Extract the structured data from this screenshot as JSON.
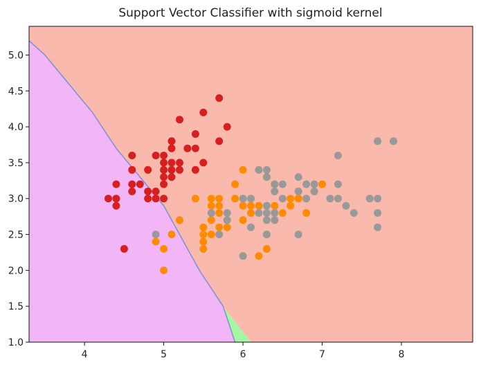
{
  "chart_data": {
    "type": "scatter",
    "title": "Support Vector Classifier with sigmoid kernel",
    "xlabel": "",
    "ylabel": "",
    "xlim": [
      3.3,
      8.9
    ],
    "ylim": [
      1.0,
      5.4
    ],
    "x_ticks": [
      4,
      5,
      6,
      7,
      8
    ],
    "y_ticks": [
      1.0,
      1.5,
      2.0,
      2.5,
      3.0,
      3.5,
      4.0,
      4.5,
      5.0
    ],
    "grid": false,
    "legend": "none",
    "regions": [
      {
        "color": "#f9b9ad",
        "polygon": [
          [
            3.3,
            5.2
          ],
          [
            3.5,
            5.0
          ],
          [
            3.8,
            4.6
          ],
          [
            4.1,
            4.2
          ],
          [
            4.4,
            3.7
          ],
          [
            4.7,
            3.3
          ],
          [
            5.0,
            2.9
          ],
          [
            5.2,
            2.5
          ],
          [
            5.45,
            2.0
          ],
          [
            5.75,
            1.5
          ],
          [
            6.1,
            1.0
          ],
          [
            8.9,
            1.0
          ],
          [
            8.9,
            5.4
          ],
          [
            3.3,
            5.4
          ]
        ]
      },
      {
        "color": "#a6f7a2",
        "polygon": [
          [
            5.75,
            1.5
          ],
          [
            5.9,
            1.0
          ],
          [
            6.1,
            1.0
          ]
        ]
      },
      {
        "color": "#f2b6f7",
        "polygon": [
          [
            3.3,
            1.0
          ],
          [
            5.9,
            1.0
          ],
          [
            5.75,
            1.5
          ],
          [
            5.45,
            2.0
          ],
          [
            5.2,
            2.5
          ],
          [
            5.0,
            2.9
          ],
          [
            4.7,
            3.3
          ],
          [
            4.4,
            3.7
          ],
          [
            4.1,
            4.2
          ],
          [
            3.8,
            4.6
          ],
          [
            3.5,
            5.0
          ],
          [
            3.3,
            5.2
          ]
        ]
      }
    ],
    "boundary": {
      "color": "#7a8fd6",
      "points": [
        [
          3.3,
          5.2
        ],
        [
          3.5,
          5.0
        ],
        [
          3.8,
          4.6
        ],
        [
          4.1,
          4.2
        ],
        [
          4.4,
          3.7
        ],
        [
          4.7,
          3.3
        ],
        [
          5.0,
          2.9
        ],
        [
          5.2,
          2.5
        ],
        [
          5.45,
          2.0
        ],
        [
          5.75,
          1.5
        ],
        [
          5.9,
          1.0
        ]
      ]
    },
    "series": [
      {
        "color": "#d71f1f",
        "points": [
          [
            4.3,
            3.0
          ],
          [
            4.4,
            2.9
          ],
          [
            4.4,
            3.0
          ],
          [
            4.4,
            3.2
          ],
          [
            4.5,
            2.3
          ],
          [
            4.6,
            3.1
          ],
          [
            4.6,
            3.2
          ],
          [
            4.6,
            3.4
          ],
          [
            4.6,
            3.6
          ],
          [
            4.7,
            3.2
          ],
          [
            4.8,
            3.0
          ],
          [
            4.8,
            3.1
          ],
          [
            4.8,
            3.4
          ],
          [
            4.9,
            3.0
          ],
          [
            4.9,
            3.1
          ],
          [
            4.9,
            3.6
          ],
          [
            5.0,
            3.0
          ],
          [
            5.0,
            3.2
          ],
          [
            5.0,
            3.3
          ],
          [
            5.0,
            3.4
          ],
          [
            5.0,
            3.5
          ],
          [
            5.0,
            3.6
          ],
          [
            5.1,
            3.3
          ],
          [
            5.1,
            3.4
          ],
          [
            5.1,
            3.5
          ],
          [
            5.1,
            3.7
          ],
          [
            5.1,
            3.8
          ],
          [
            5.2,
            3.4
          ],
          [
            5.2,
            3.5
          ],
          [
            5.2,
            4.1
          ],
          [
            5.3,
            3.7
          ],
          [
            5.4,
            3.4
          ],
          [
            5.4,
            3.7
          ],
          [
            5.4,
            3.9
          ],
          [
            5.5,
            3.5
          ],
          [
            5.5,
            4.2
          ],
          [
            5.7,
            3.8
          ],
          [
            5.7,
            4.4
          ],
          [
            5.8,
            4.0
          ]
        ]
      },
      {
        "color": "#ff8c00",
        "points": [
          [
            4.9,
            2.4
          ],
          [
            5.0,
            2.0
          ],
          [
            5.0,
            2.3
          ],
          [
            5.1,
            2.5
          ],
          [
            5.2,
            2.7
          ],
          [
            5.4,
            3.0
          ],
          [
            5.5,
            2.3
          ],
          [
            5.5,
            2.4
          ],
          [
            5.5,
            2.5
          ],
          [
            5.5,
            2.6
          ],
          [
            5.6,
            2.5
          ],
          [
            5.6,
            2.7
          ],
          [
            5.6,
            2.9
          ],
          [
            5.6,
            3.0
          ],
          [
            5.7,
            2.6
          ],
          [
            5.7,
            2.8
          ],
          [
            5.7,
            2.9
          ],
          [
            5.7,
            3.0
          ],
          [
            5.8,
            2.6
          ],
          [
            5.8,
            2.7
          ],
          [
            5.9,
            3.0
          ],
          [
            5.9,
            3.2
          ],
          [
            6.0,
            2.2
          ],
          [
            6.0,
            2.7
          ],
          [
            6.0,
            2.9
          ],
          [
            6.0,
            3.4
          ],
          [
            6.1,
            2.8
          ],
          [
            6.1,
            2.9
          ],
          [
            6.1,
            3.0
          ],
          [
            6.2,
            2.2
          ],
          [
            6.2,
            2.9
          ],
          [
            6.3,
            2.3
          ],
          [
            6.3,
            2.5
          ],
          [
            6.3,
            3.3
          ],
          [
            6.4,
            2.9
          ],
          [
            6.4,
            3.2
          ],
          [
            6.5,
            2.8
          ],
          [
            6.6,
            2.9
          ],
          [
            6.6,
            3.0
          ],
          [
            6.7,
            3.0
          ],
          [
            6.7,
            3.1
          ],
          [
            6.8,
            2.8
          ],
          [
            6.9,
            3.1
          ],
          [
            7.0,
            3.2
          ]
        ]
      },
      {
        "color": "#999999",
        "points": [
          [
            4.9,
            2.5
          ],
          [
            5.6,
            2.8
          ],
          [
            5.7,
            2.5
          ],
          [
            5.8,
            2.7
          ],
          [
            5.8,
            2.8
          ],
          [
            6.0,
            2.2
          ],
          [
            6.0,
            3.0
          ],
          [
            6.1,
            2.6
          ],
          [
            6.1,
            3.0
          ],
          [
            6.2,
            2.8
          ],
          [
            6.2,
            3.4
          ],
          [
            6.3,
            2.5
          ],
          [
            6.3,
            2.7
          ],
          [
            6.3,
            2.8
          ],
          [
            6.3,
            2.9
          ],
          [
            6.3,
            3.3
          ],
          [
            6.3,
            3.4
          ],
          [
            6.4,
            2.7
          ],
          [
            6.4,
            2.8
          ],
          [
            6.4,
            3.1
          ],
          [
            6.4,
            3.2
          ],
          [
            6.5,
            3.0
          ],
          [
            6.5,
            3.2
          ],
          [
            6.7,
            2.5
          ],
          [
            6.7,
            3.1
          ],
          [
            6.7,
            3.3
          ],
          [
            6.8,
            3.0
          ],
          [
            6.8,
            3.2
          ],
          [
            6.9,
            3.1
          ],
          [
            6.9,
            3.2
          ],
          [
            7.1,
            3.0
          ],
          [
            7.2,
            3.0
          ],
          [
            7.2,
            3.2
          ],
          [
            7.2,
            3.6
          ],
          [
            7.3,
            2.9
          ],
          [
            7.4,
            2.8
          ],
          [
            7.6,
            3.0
          ],
          [
            7.7,
            2.6
          ],
          [
            7.7,
            2.8
          ],
          [
            7.7,
            3.0
          ],
          [
            7.7,
            3.8
          ],
          [
            7.9,
            3.8
          ]
        ]
      }
    ]
  }
}
